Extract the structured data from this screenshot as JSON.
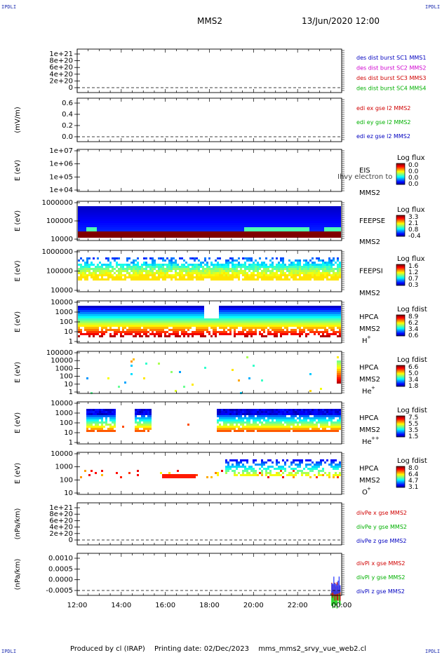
{
  "header": {
    "corner_label": "IPDLI",
    "spacecraft": "MMS2",
    "datetime": "13/Jun/2020 12:00"
  },
  "footer": {
    "produced_by": "Produced by cl (IRAP)",
    "printing_date": "Printing date: 02/Dec/2023",
    "filename": "mms_mms2_srvy_vue_web2.cl"
  },
  "colors": {
    "red": "#d00000",
    "magenta": "#d000d0",
    "green": "#00b000",
    "blue": "#0000c0"
  },
  "chart_data": {
    "type": "heatmap",
    "x_axis": {
      "range": [
        "12:00",
        "00:00"
      ],
      "ticks": [
        "12:00",
        "14:00",
        "16:00",
        "18:00",
        "20:00",
        "22:00",
        "00:00"
      ]
    },
    "panels": [
      {
        "kind": "line",
        "ylabel": "",
        "ticks": [
          "1e+21",
          "8e+20",
          "6e+20",
          "4e+20",
          "2e+20",
          "0"
        ],
        "zero_line": true,
        "legend": [
          {
            "text": "des dist burst SC1 MMS1",
            "color": "blue"
          },
          {
            "text": "des dist burst SC2 MMS2",
            "color": "magenta"
          },
          {
            "text": "des dist burst SC3 MMS3",
            "color": "red"
          },
          {
            "text": "des dist burst SC4 MMS4",
            "color": "green"
          }
        ]
      },
      {
        "kind": "line",
        "ylabel": "(mV/m)",
        "ticks": [
          "0.6",
          "0.4",
          "0.2",
          "0.0"
        ],
        "zero_line": true,
        "legend": [
          {
            "text": "edi ex gse l2 MMS2",
            "color": "red"
          },
          {
            "text": "edi ey gse l2 MMS2",
            "color": "green"
          },
          {
            "text": "edi ez gse l2 MMS2",
            "color": "blue"
          }
        ]
      },
      {
        "kind": "spectrogram",
        "ylabel": "E (eV)",
        "ticks": [
          "1e+07",
          "1e+06",
          "1e+05",
          "1e+04"
        ],
        "side_labels": [
          "EIS",
          "MMS2"
        ],
        "cb_title": "Log flux",
        "cb_ticks": [
          "0.0",
          "0.0",
          "0.0",
          "0.0"
        ],
        "overlay_text": "Ihvy electron to",
        "pattern": "none"
      },
      {
        "kind": "spectrogram",
        "ylabel": "E (eV)",
        "ticks": [
          "1000000",
          "100000",
          "10000"
        ],
        "side_labels": [
          "FEEPSE",
          "MMS2"
        ],
        "cb_title": "Log flux",
        "cb_ticks": [
          "3.3",
          "2.1",
          "0.8",
          "-0.4"
        ],
        "pattern": "feepse"
      },
      {
        "kind": "spectrogram",
        "ylabel": "E (eV)",
        "ticks": [
          "1000000",
          "100000",
          "10000"
        ],
        "side_labels": [
          "FEEPSI",
          "MMS2"
        ],
        "cb_title": "Log flux",
        "cb_ticks": [
          "1.6",
          "1.2",
          "0.7",
          "0.3"
        ],
        "pattern": "feepsi"
      },
      {
        "kind": "spectrogram",
        "ylabel": "E (eV)",
        "ticks": [
          "10000",
          "1000",
          "100",
          "10",
          "1"
        ],
        "side_labels": [
          "HPCA",
          "MMS2"
        ],
        "species": "H",
        "species_sup": "+",
        "cb_title": "Log fdist",
        "cb_ticks": [
          "8.9",
          "6.2",
          "3.4",
          "0.6"
        ],
        "pattern": "hplus"
      },
      {
        "kind": "spectrogram",
        "ylabel": "E (eV)",
        "ticks": [
          "100000",
          "10000",
          "1000",
          "100",
          "10",
          "1"
        ],
        "side_labels": [
          "HPCA",
          "MMS2"
        ],
        "species": "He",
        "species_sup": "+",
        "cb_title": "Log fdist",
        "cb_ticks": [
          "6.6",
          "5.0",
          "3.4",
          "1.8"
        ],
        "pattern": "heplus"
      },
      {
        "kind": "spectrogram",
        "ylabel": "E (eV)",
        "ticks": [
          "10000",
          "1000",
          "100",
          "10",
          "1"
        ],
        "side_labels": [
          "HPCA",
          "MMS2"
        ],
        "species": "He",
        "species_sup": "++",
        "cb_title": "Log fdist",
        "cb_ticks": [
          "7.5",
          "5.5",
          "3.5",
          "1.5"
        ],
        "pattern": "hepp"
      },
      {
        "kind": "spectrogram",
        "ylabel": "E (eV)",
        "ticks": [
          "10000",
          "1000",
          "100",
          "10"
        ],
        "side_labels": [
          "HPCA",
          "MMS2"
        ],
        "species": "O",
        "species_sup": "+",
        "cb_title": "Log fdist",
        "cb_ticks": [
          "8.0",
          "6.4",
          "4.7",
          "3.1"
        ],
        "pattern": "oplus"
      },
      {
        "kind": "line",
        "ylabel": "(nPa/km)",
        "ticks": [
          "1e+21",
          "8e+20",
          "6e+20",
          "4e+20",
          "2e+20",
          "0"
        ],
        "zero_line": true,
        "legend": [
          {
            "text": "divPe x gse MMS2",
            "color": "red"
          },
          {
            "text": "divPe y gse MMS2",
            "color": "green"
          },
          {
            "text": "divPe z gse MMS2",
            "color": "blue"
          }
        ]
      },
      {
        "kind": "line",
        "ylabel": "(nPa/km)",
        "ticks": [
          "0.0010",
          "0.0005",
          "0.0000",
          "-0.0005"
        ],
        "zero_line": true,
        "legend": [
          {
            "text": "divPi x gse MMS2",
            "color": "red"
          },
          {
            "text": "divPi y gse MMS2",
            "color": "green"
          },
          {
            "text": "divPi z gse MMS2",
            "color": "blue"
          }
        ],
        "burst_at_end": true
      }
    ]
  }
}
